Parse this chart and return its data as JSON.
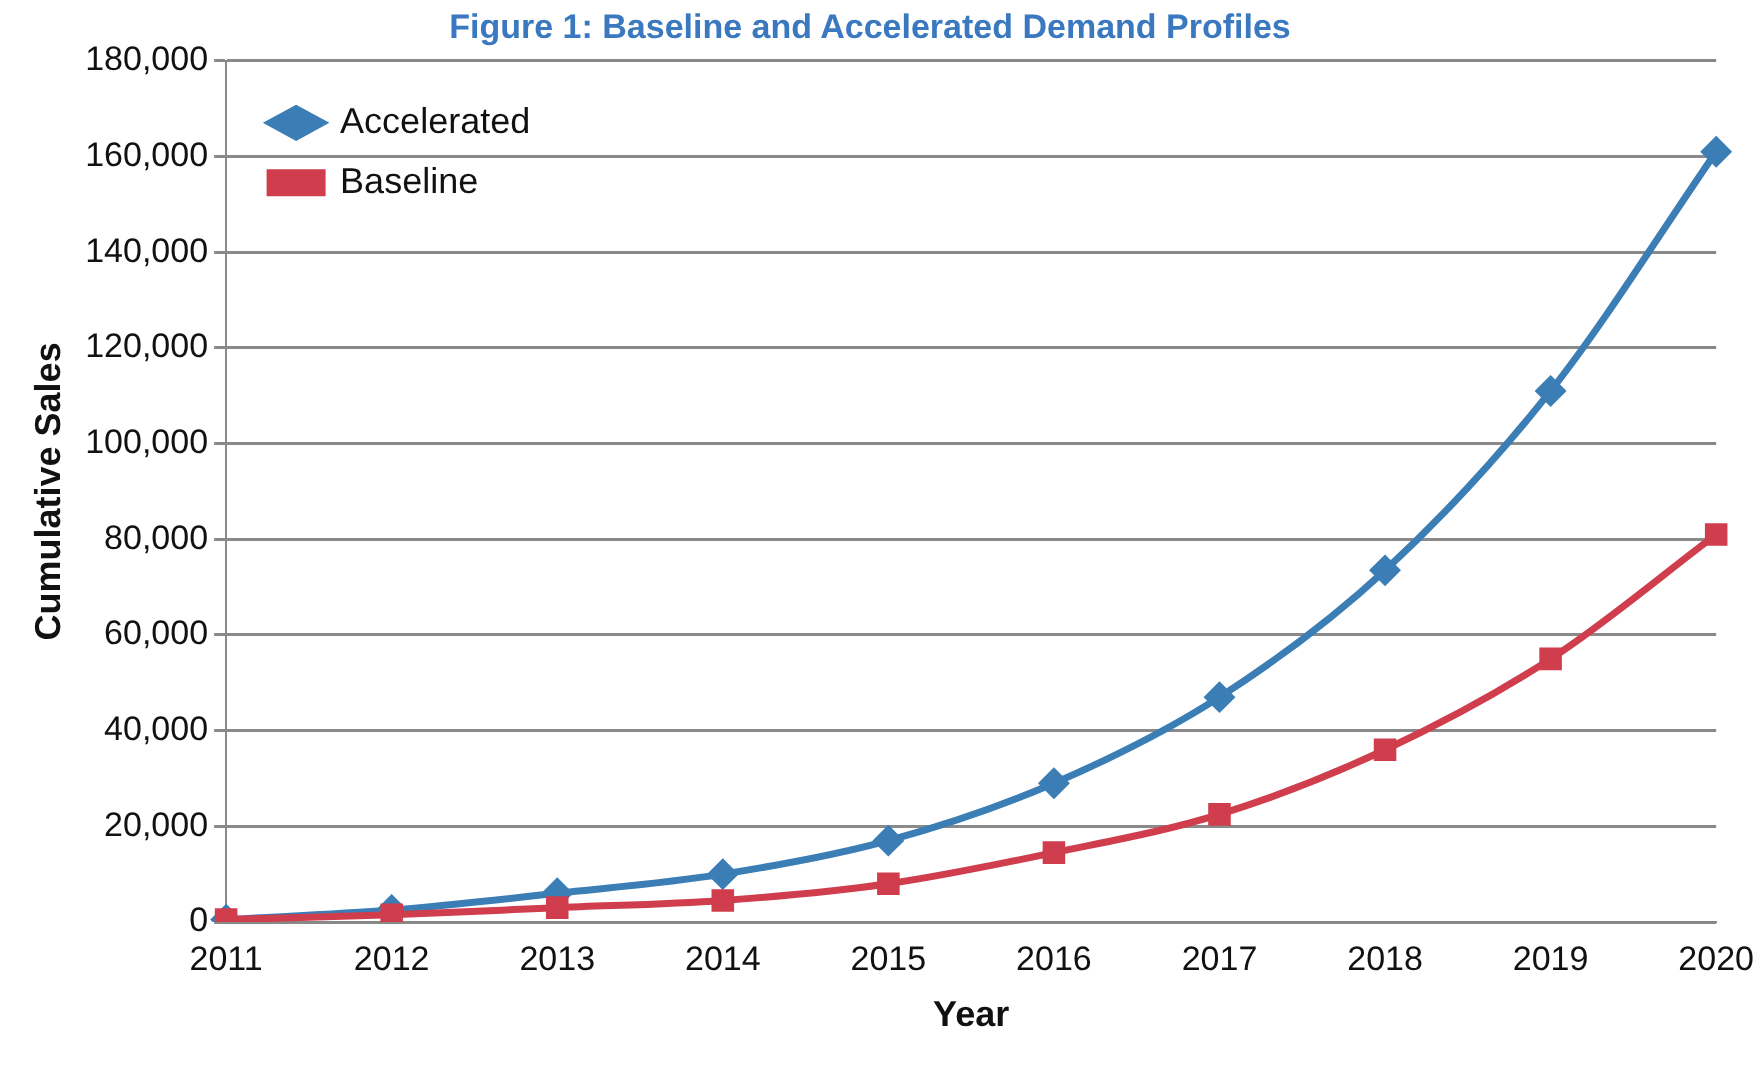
{
  "chart_data": {
    "type": "line",
    "title": "Figure 1: Baseline and Accelerated Demand Profiles",
    "xlabel": "Year",
    "ylabel": "Cumulative Sales",
    "categories": [
      "2011",
      "2012",
      "2013",
      "2014",
      "2015",
      "2016",
      "2017",
      "2018",
      "2019",
      "2020"
    ],
    "series": [
      {
        "name": "Accelerated",
        "color": "#3b7db5",
        "marker": "diamond",
        "values": [
          500,
          2500,
          6000,
          10000,
          17000,
          29000,
          47000,
          73500,
          111000,
          161000
        ]
      },
      {
        "name": "Baseline",
        "color": "#d03d4c",
        "marker": "square",
        "values": [
          500,
          1500,
          3000,
          4500,
          8000,
          14500,
          22500,
          36000,
          55000,
          81000
        ]
      }
    ],
    "ylim": [
      0,
      180000
    ],
    "yticks": [
      0,
      {
        "value": 20000,
        "label": "20,000"
      },
      {
        "value": 40000,
        "label": "40,000"
      },
      {
        "value": 60000,
        "label": "60,000"
      },
      {
        "value": 80000,
        "label": "80,000"
      },
      {
        "value": 100000,
        "label": "100,000"
      },
      {
        "value": 120000,
        "label": "120,000"
      },
      {
        "value": 140000,
        "label": "140,000"
      },
      {
        "value": 160000,
        "label": "160,000"
      },
      {
        "value": 180000,
        "label": "180,000"
      }
    ],
    "grid": "y",
    "legend": "top left"
  }
}
